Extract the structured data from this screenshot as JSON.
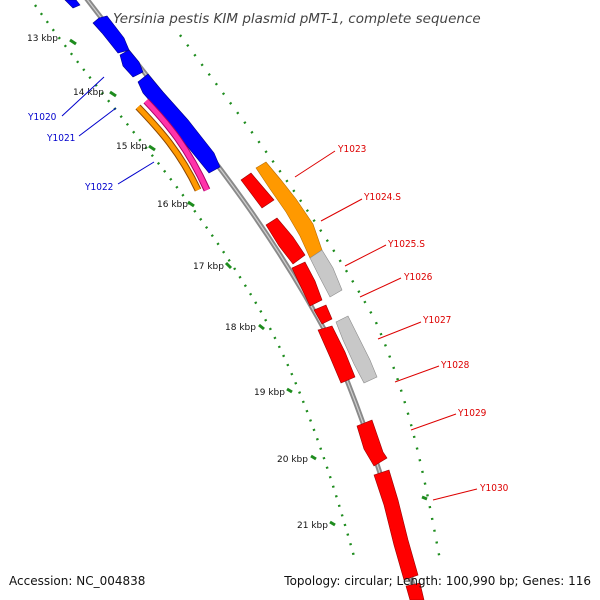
{
  "title": "Yersinia pestis KIM plasmid pMT-1, complete sequence",
  "footer": {
    "accession": "Accession: NC_004838",
    "summary": "Topology: circular; Length: 100,990 bp; Genes: 116"
  },
  "colors": {
    "backbone": "#8a8a8a",
    "tick": "#1e8c1e",
    "forward_label": "#0000cc",
    "reverse_label": "#dd0000",
    "blue_gene": "#0000ff",
    "red_gene": "#ff0000",
    "orange_gene": "#ff9900",
    "magenta_gene": "#ff33aa",
    "gray_gene": "#c8c8c8"
  },
  "kbp_labels": [
    "13 kbp",
    "14 kbp",
    "15 kbp",
    "16 kbp",
    "17 kbp",
    "18 kbp",
    "19 kbp",
    "20 kbp",
    "21 kbp"
  ],
  "forward_gene_labels": [
    "Y1020",
    "Y1021",
    "Y1022"
  ],
  "reverse_gene_labels": [
    "Y1023",
    "Y1024.S",
    "Y1025.S",
    "Y1026",
    "Y1027",
    "Y1028",
    "Y1029",
    "Y1030"
  ]
}
